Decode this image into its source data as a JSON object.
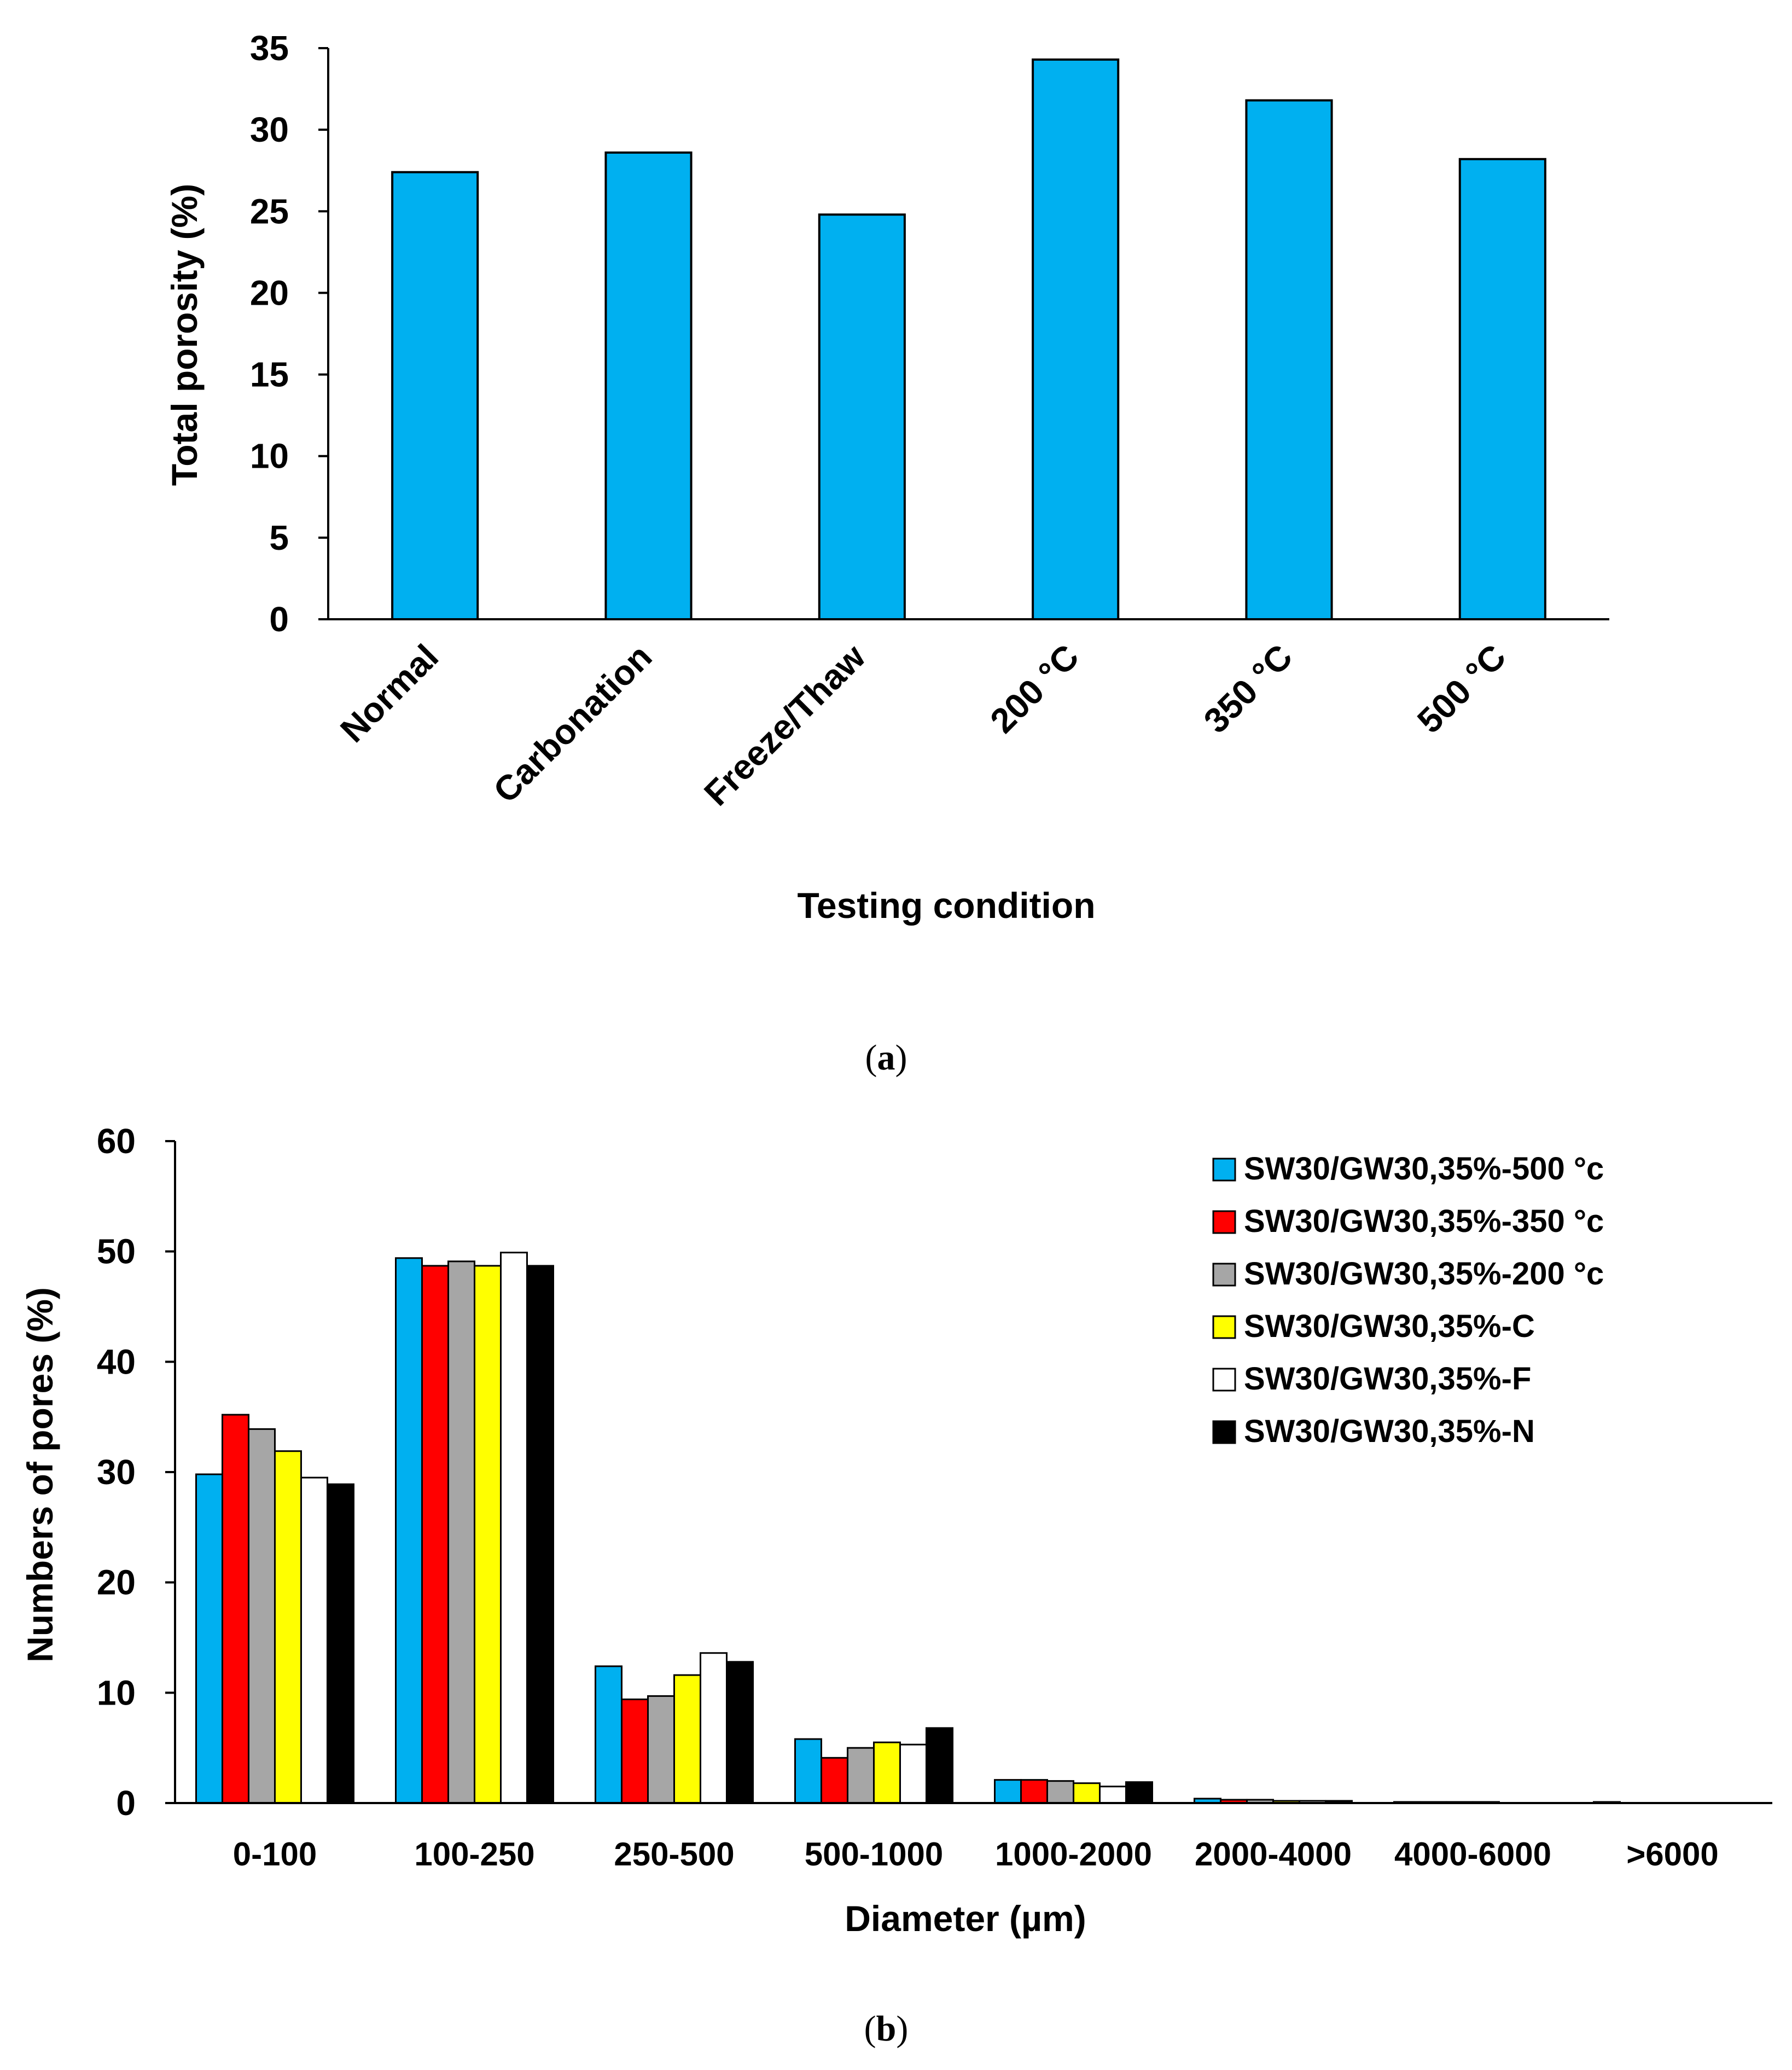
{
  "chart_data": [
    {
      "type": "bar",
      "title": "",
      "panel_label": "a",
      "xlabel": "Testing condition",
      "ylabel": "Total porosity (%)",
      "ylim": [
        0,
        35
      ],
      "yticks": [
        0,
        5,
        10,
        15,
        20,
        25,
        30,
        35
      ],
      "grid": false,
      "legend": "none",
      "color": "#00B0F0",
      "categories": [
        "Normal",
        "Carbonation",
        "Freeze/Thaw",
        "200 °C",
        "350 °C",
        "500 °C"
      ],
      "values": [
        27.4,
        28.6,
        24.8,
        34.3,
        31.8,
        28.2
      ]
    },
    {
      "type": "bar",
      "title": "",
      "panel_label": "b",
      "xlabel": "Diameter (µm)",
      "ylabel": "Numbers of pores (%)",
      "ylim": [
        0,
        60
      ],
      "yticks": [
        0,
        10,
        20,
        30,
        40,
        50,
        60
      ],
      "grid": false,
      "legend": "top-right",
      "categories": [
        "0-100",
        "100-250",
        "250-500",
        "500-1000",
        "1000-2000",
        "2000-4000",
        "4000-6000",
        ">6000"
      ],
      "series": [
        {
          "name": "SW30/GW30,35%-500 °c",
          "color": "#00B0F0",
          "values": [
            29.8,
            49.4,
            12.4,
            5.8,
            2.1,
            0.4,
            0.1,
            0.1
          ]
        },
        {
          "name": "SW30/GW30,35%-350 °c",
          "color": "#FF0000",
          "values": [
            35.2,
            48.7,
            9.4,
            4.1,
            2.1,
            0.3,
            0.1,
            0.0
          ]
        },
        {
          "name": "SW30/GW30,35%-200 °c",
          "color": "#A6A6A6",
          "values": [
            33.9,
            49.1,
            9.7,
            5.0,
            2.0,
            0.3,
            0.1,
            0.0
          ]
        },
        {
          "name": "SW30/GW30,35%-C",
          "color": "#FFFF00",
          "values": [
            31.9,
            48.7,
            11.6,
            5.5,
            1.8,
            0.2,
            0.1,
            0.0
          ]
        },
        {
          "name": "SW30/GW30,35%-F",
          "color": "#FFFFFF",
          "values": [
            29.5,
            49.9,
            13.6,
            5.3,
            1.5,
            0.2,
            0.0,
            0.0
          ]
        },
        {
          "name": "SW30/GW30,35%-N",
          "color": "#000000",
          "values": [
            28.9,
            48.7,
            12.8,
            6.8,
            1.9,
            0.2,
            0.0,
            0.0
          ]
        }
      ]
    }
  ]
}
